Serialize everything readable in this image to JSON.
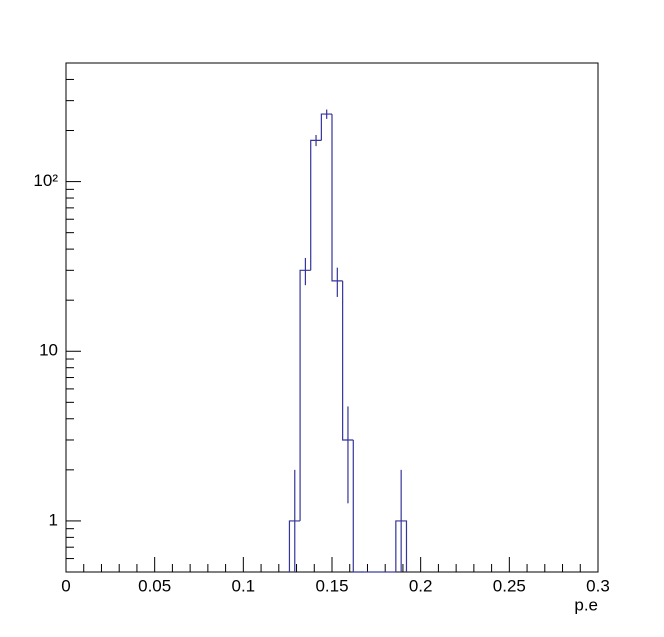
{
  "chart_data": {
    "type": "histogram",
    "x_label": "p.e",
    "bins": [
      0.126,
      0.132,
      0.138,
      0.144,
      0.15,
      0.156,
      0.162,
      0.168,
      0.174,
      0.18,
      0.186,
      0.192
    ],
    "counts": [
      1,
      30,
      175,
      250,
      26,
      3,
      0,
      0,
      0,
      0,
      1
    ],
    "errors": [
      1,
      5.48,
      13.2,
      15.8,
      5.1,
      1.73,
      0,
      0,
      0,
      0,
      1
    ],
    "color": "#35359b",
    "xlim": [
      0,
      0.3
    ],
    "xticks": [
      0,
      0.05,
      0.1,
      0.15,
      0.2,
      0.25,
      0.3
    ],
    "xminorticks": [
      0.01,
      0.02,
      0.03,
      0.04,
      0.06,
      0.07,
      0.08,
      0.09,
      0.11,
      0.12,
      0.13,
      0.14,
      0.16,
      0.17,
      0.18,
      0.19,
      0.21,
      0.22,
      0.23,
      0.24,
      0.26,
      0.27,
      0.28,
      0.29
    ],
    "ylim": [
      0.5,
      500
    ],
    "log_y": true,
    "yticks": [
      1,
      10,
      {
        "value": 100,
        "label": "10²"
      }
    ],
    "yminorticks": [
      0.6,
      0.7,
      0.8,
      0.9,
      2,
      3,
      4,
      5,
      6,
      7,
      8,
      9,
      20,
      30,
      40,
      50,
      60,
      70,
      80,
      90,
      200,
      300,
      400,
      500
    ]
  }
}
